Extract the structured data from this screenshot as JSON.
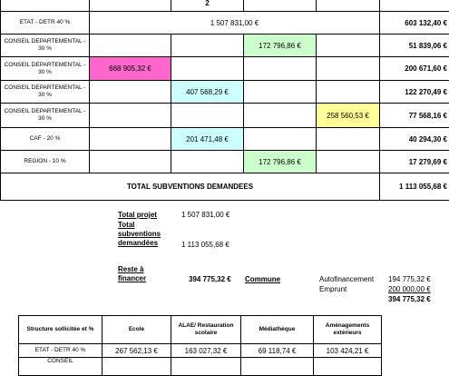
{
  "top_table": {
    "header_fragment": "2",
    "rows": [
      {
        "label": "ETAT - DETR 40 %",
        "amount": "1 507 831,00 €",
        "total": "603 132,40 €"
      },
      {
        "label": "CONSEIL DEPARTEMENTAL - 30 %",
        "amount": "172 796,86 €",
        "total": "51 839,06 €"
      },
      {
        "label": "CONSEIL DEPARTEMENTAL - 30 %",
        "amount": "668 905,32 €",
        "total": "200 671,60 €"
      },
      {
        "label": "CONSEIL DEPARTEMENTAL - 30 %",
        "amount": "407 568,29 €",
        "total": "122 270,49 €"
      },
      {
        "label": "CONSEIL DEPARTEMENTAL - 30 %",
        "amount": "258 560,53 €",
        "total": "77 568,16 €"
      },
      {
        "label": "CAF - 20 %",
        "amount": "201 471,48 €",
        "total": "40 294,30 €"
      },
      {
        "label": "REGION - 10 %",
        "amount": "172 796,86 €",
        "total": "17 279,69 €"
      }
    ],
    "total_label": "TOTAL SUBVENTIONS DEMANDEES",
    "total_value": "1 113 055,68 €"
  },
  "summary": {
    "total_projet_label": "Total projet",
    "total_projet": "1 507 831,00 €",
    "total_subventions_label": "Total subventions demandées",
    "total_subventions": "1 113 055,68 €",
    "reste_label": "Reste à financer",
    "reste": "394 775,32 €",
    "commune": "Commune",
    "autofinancement_label": "Autofinancement",
    "autofinancement": "194 775,32 €",
    "emprunt_label": "Emprunt",
    "emprunt": "200 000,00 €",
    "sum": "394 775,32 €"
  },
  "bottom_table": {
    "headers": [
      "Structure sollicitée et %",
      "Ecole",
      "ALAE/ Restauration scolaire",
      "Médiathèque",
      "Aménagements extérieurs"
    ],
    "rows": [
      [
        "ETAT - DETR 40 %",
        "267 562,13 €",
        "163 027,32 €",
        "69 118,74 €",
        "103 424,21 €"
      ],
      [
        "CONSEIL"
      ]
    ]
  }
}
